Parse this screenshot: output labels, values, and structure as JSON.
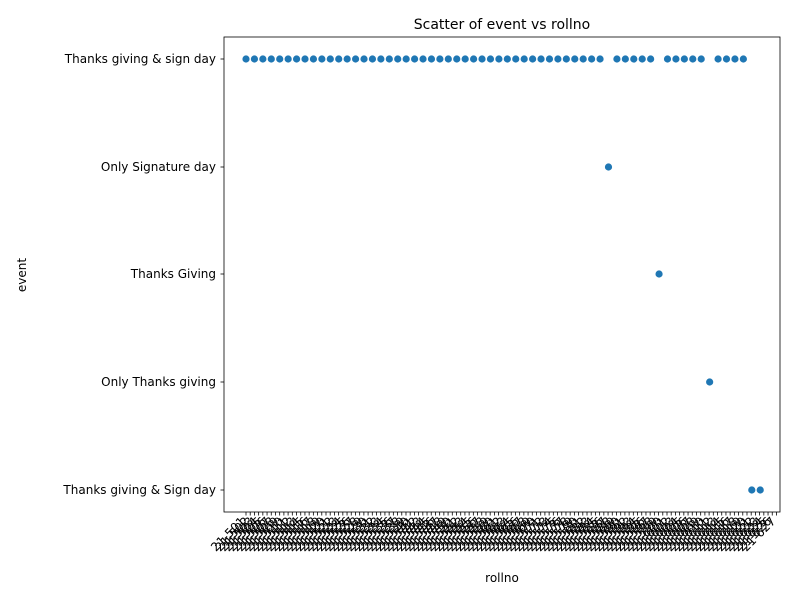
{
  "chart_data": {
    "type": "scatter",
    "title": "Scatter of event vs rollno",
    "xlabel": "rollno",
    "ylabel": "event",
    "grid": false,
    "legend": "none",
    "marker_color": "#1f77b4",
    "y_categories": [
      "Thanks giving & sign day",
      "Only Signature day",
      "Thanks Giving",
      "Only Thanks giving",
      "Thanks giving & Sign day"
    ],
    "x_tick_labels": [
      "21-501",
      "21-502",
      "21-503",
      "21-504",
      "21-505",
      "21-506",
      "21-507",
      "21-508",
      "21-509",
      "21-510",
      "21-511",
      "21-512",
      "21-513",
      "21-514",
      "21-515",
      "21-516",
      "21-517",
      "21-518",
      "21-519",
      "21-520",
      "21-521",
      "21-522",
      "21-523",
      "21-524",
      "21-525",
      "21-526",
      "21-527",
      "21-528",
      "21-529",
      "21-530",
      "21-531",
      "21-532",
      "21-533",
      "21-534",
      "21-535",
      "21-536",
      "21-537",
      "21-538",
      "21-539",
      "21-540",
      "21-541",
      "21-542",
      "21-543",
      "21-544",
      "21-545",
      "21-546",
      "21-547",
      "21-548",
      "21-549",
      "21-550",
      "21-551",
      "21-552",
      "21-553",
      "21-554",
      "21-555",
      "21-556",
      "21-557",
      "21-558",
      "21-559",
      "21-560",
      "21-561",
      "21-562",
      "21-563",
      "21-564",
      "21-565",
      "21-566",
      "21-567",
      "21-568",
      "21-569",
      "21-570",
      "21-571",
      "21-572",
      "21-573",
      "21-574",
      "21-575",
      "21-576",
      "21-577",
      "21-578",
      "21-579",
      "21-580",
      "21-581",
      "21-582",
      "21-583",
      "21-584",
      "21-585",
      "21-586",
      "21-587",
      "21-588",
      "21-589",
      "21-590",
      "21-591",
      "21-592",
      "21-593",
      "21-594",
      "21-595",
      "21-596",
      "21-597",
      "21-598",
      "21-599",
      "21-600",
      "21-601",
      "21-602",
      "21-603",
      "21-604",
      "21-605",
      "21-606",
      "21-607",
      "21-608",
      "21-609",
      "21-610",
      "21-611",
      "21-612",
      "21-613",
      "21-614",
      "21-615",
      "21-616",
      "21-617",
      "21-618",
      "21-619",
      "21-620",
      "21-621",
      "21-622",
      "21-623",
      "21-624",
      "21-625",
      "21-626",
      "21-627",
      "21-628",
      "21-629",
      "21-630"
    ],
    "points": [
      {
        "x": "21-501",
        "y": "Thanks giving & sign day"
      },
      {
        "x": "21-502",
        "y": "Thanks giving & sign day"
      },
      {
        "x": "21-503",
        "y": "Thanks giving & sign day"
      },
      {
        "x": "21-504",
        "y": "Thanks giving & sign day"
      },
      {
        "x": "21-505",
        "y": "Thanks giving & sign day"
      },
      {
        "x": "21-506",
        "y": "Thanks giving & sign day"
      },
      {
        "x": "21-507",
        "y": "Thanks giving & sign day"
      },
      {
        "x": "21-508",
        "y": "Thanks giving & sign day"
      },
      {
        "x": "21-509",
        "y": "Thanks giving & sign day"
      },
      {
        "x": "21-510",
        "y": "Thanks giving & sign day"
      },
      {
        "x": "21-511",
        "y": "Thanks giving & sign day"
      },
      {
        "x": "21-512",
        "y": "Thanks giving & sign day"
      },
      {
        "x": "21-513",
        "y": "Thanks giving & sign day"
      },
      {
        "x": "21-514",
        "y": "Thanks giving & sign day"
      },
      {
        "x": "21-515",
        "y": "Thanks giving & sign day"
      },
      {
        "x": "21-516",
        "y": "Thanks giving & sign day"
      },
      {
        "x": "21-517",
        "y": "Thanks giving & sign day"
      },
      {
        "x": "21-518",
        "y": "Thanks giving & sign day"
      },
      {
        "x": "21-519",
        "y": "Thanks giving & sign day"
      },
      {
        "x": "21-520",
        "y": "Thanks giving & sign day"
      },
      {
        "x": "21-521",
        "y": "Thanks giving & sign day"
      },
      {
        "x": "21-522",
        "y": "Thanks giving & sign day"
      },
      {
        "x": "21-523",
        "y": "Thanks giving & sign day"
      },
      {
        "x": "21-524",
        "y": "Thanks giving & sign day"
      },
      {
        "x": "21-525",
        "y": "Thanks giving & sign day"
      },
      {
        "x": "21-526",
        "y": "Thanks giving & sign day"
      },
      {
        "x": "21-527",
        "y": "Thanks giving & sign day"
      },
      {
        "x": "21-528",
        "y": "Thanks giving & sign day"
      },
      {
        "x": "21-529",
        "y": "Thanks giving & sign day"
      },
      {
        "x": "21-530",
        "y": "Thanks giving & sign day"
      },
      {
        "x": "21-531",
        "y": "Thanks giving & sign day"
      },
      {
        "x": "21-532",
        "y": "Thanks giving & sign day"
      },
      {
        "x": "21-533",
        "y": "Thanks giving & sign day"
      },
      {
        "x": "21-534",
        "y": "Thanks giving & sign day"
      },
      {
        "x": "21-535",
        "y": "Thanks giving & sign day"
      },
      {
        "x": "21-536",
        "y": "Thanks giving & sign day"
      },
      {
        "x": "21-537",
        "y": "Thanks giving & sign day"
      },
      {
        "x": "21-538",
        "y": "Thanks giving & sign day"
      },
      {
        "x": "21-539",
        "y": "Thanks giving & sign day"
      },
      {
        "x": "21-540",
        "y": "Thanks giving & sign day"
      },
      {
        "x": "21-541",
        "y": "Thanks giving & sign day"
      },
      {
        "x": "21-542",
        "y": "Thanks giving & sign day"
      },
      {
        "x": "21-543",
        "y": "Thanks giving & sign day"
      },
      {
        "x": "21-544",
        "y": "Only Signature day"
      },
      {
        "x": "21-545",
        "y": "Thanks giving & sign day"
      },
      {
        "x": "21-546",
        "y": "Thanks giving & sign day"
      },
      {
        "x": "21-547",
        "y": "Thanks giving & sign day"
      },
      {
        "x": "21-548",
        "y": "Thanks giving & sign day"
      },
      {
        "x": "21-549",
        "y": "Thanks giving & sign day"
      },
      {
        "x": "21-550",
        "y": "Thanks Giving"
      },
      {
        "x": "21-551",
        "y": "Thanks giving & sign day"
      },
      {
        "x": "21-552",
        "y": "Thanks giving & sign day"
      },
      {
        "x": "21-553",
        "y": "Thanks giving & sign day"
      },
      {
        "x": "21-554",
        "y": "Thanks giving & sign day"
      },
      {
        "x": "21-555",
        "y": "Thanks giving & sign day"
      },
      {
        "x": "21-556",
        "y": "Only Thanks giving"
      },
      {
        "x": "21-557",
        "y": "Thanks giving & sign day"
      },
      {
        "x": "21-558",
        "y": "Thanks giving & sign day"
      },
      {
        "x": "21-559",
        "y": "Thanks giving & sign day"
      },
      {
        "x": "21-560",
        "y": "Thanks giving & sign day"
      },
      {
        "x": "21-561",
        "y": "Thanks giving & Sign day"
      },
      {
        "x": "21-562",
        "y": "Thanks giving & Sign day"
      }
    ]
  }
}
